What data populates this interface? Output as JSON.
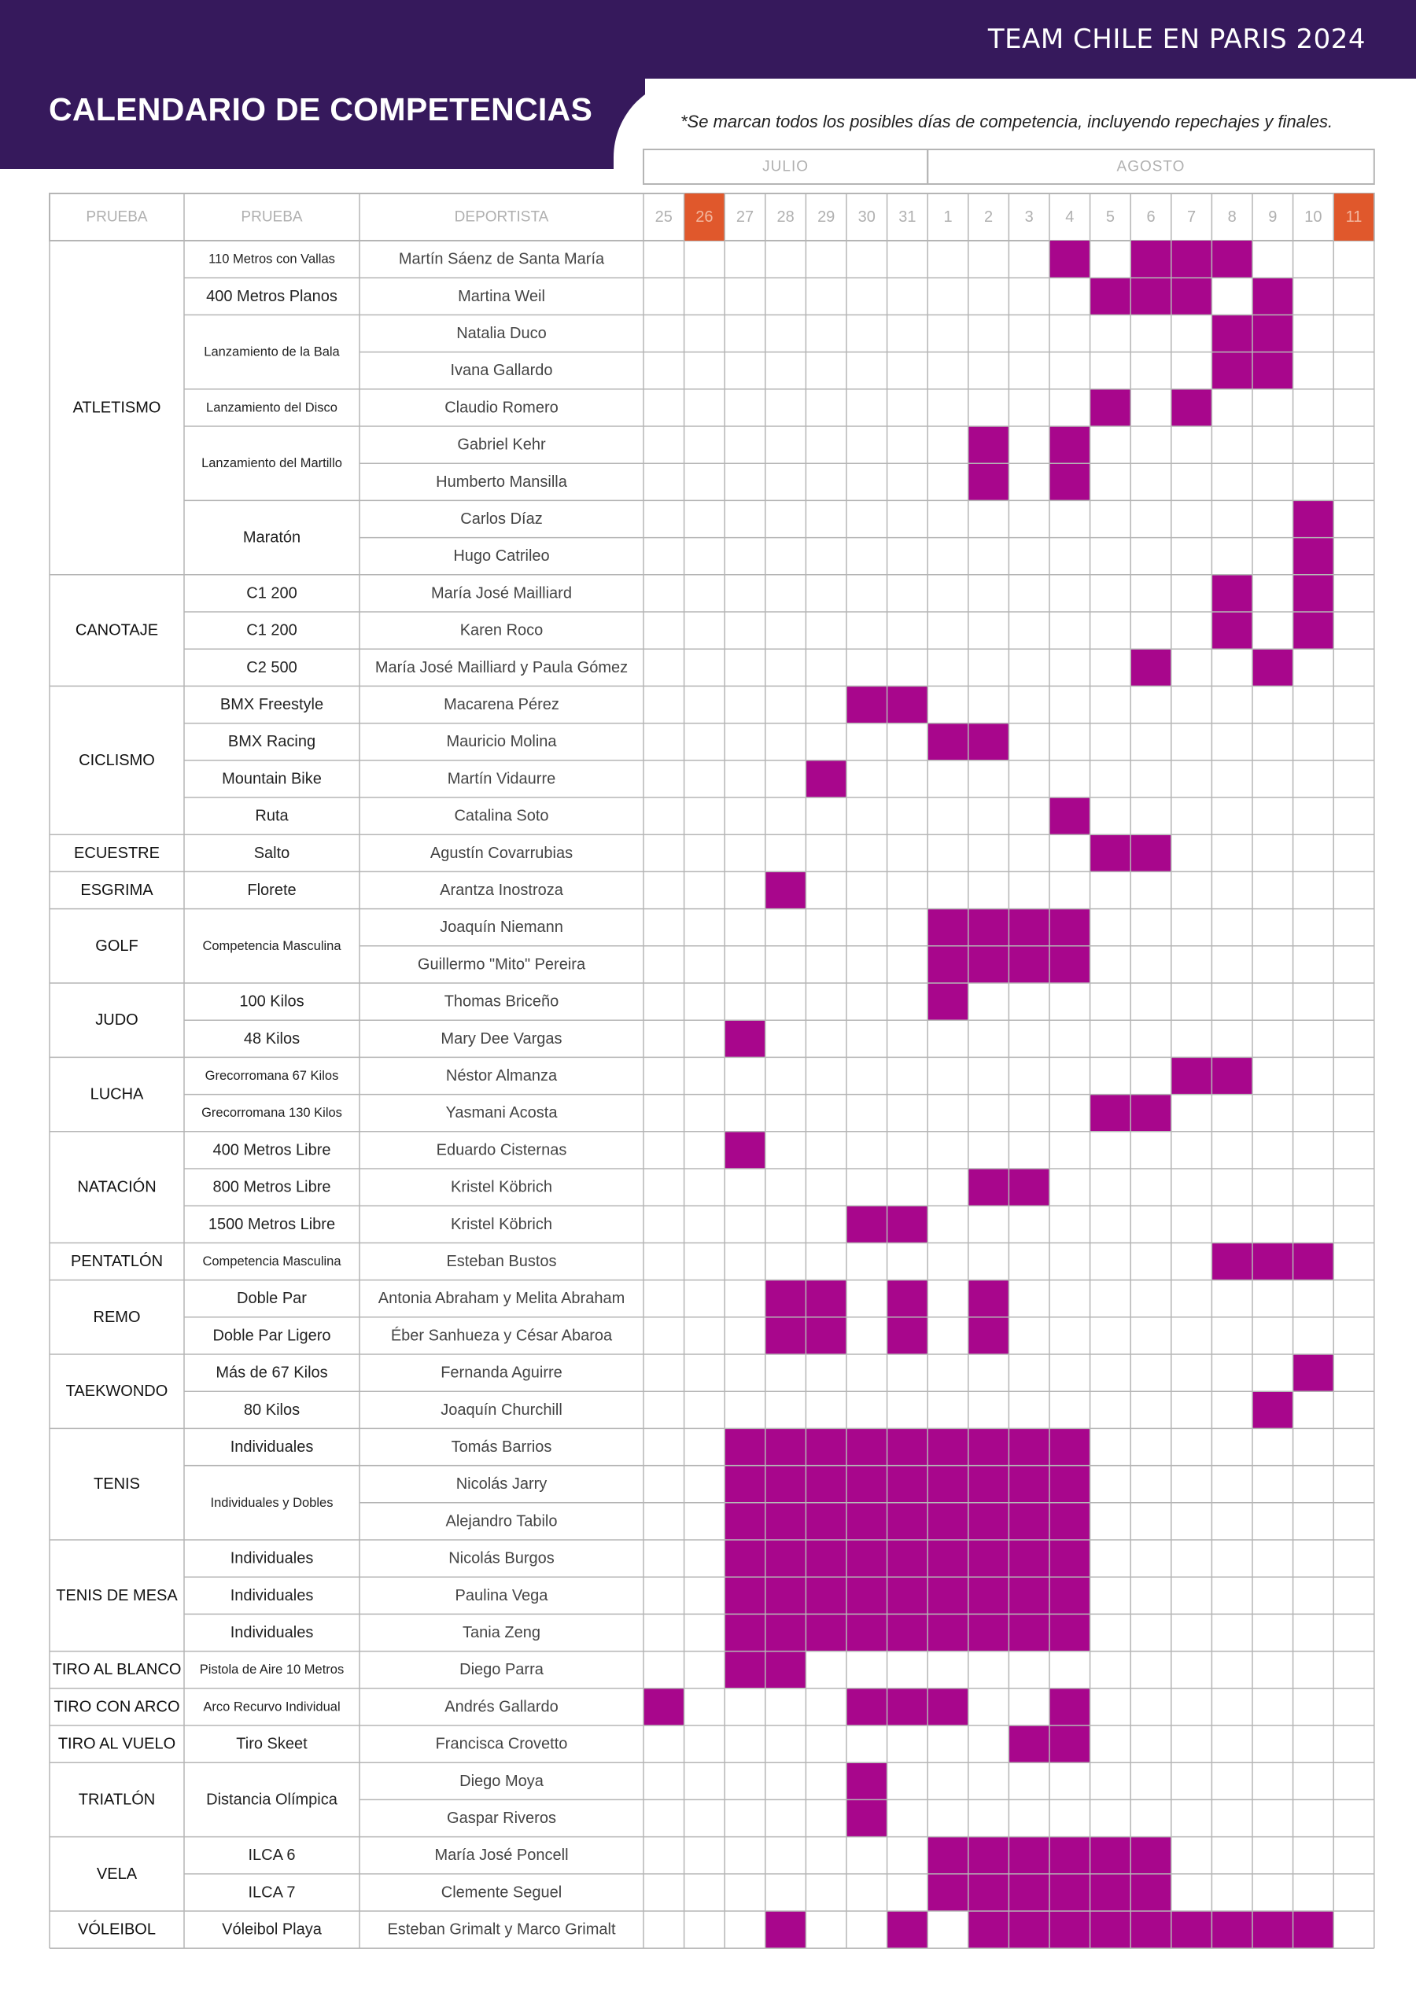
{
  "header": {
    "team_title": "TEAM CHILE EN PARIS 2024",
    "page_title": "CALENDARIO DE COMPETENCIAS",
    "note": "*Se marcan todos los posibles días de competencia, incluyendo repechajes y finales."
  },
  "colors": {
    "band": "#36195c",
    "mark": "#a8068c",
    "weekend": "#e0582c",
    "grid": "#b5b5b5",
    "muted": "#b0b0b0"
  },
  "months": [
    {
      "label": "JULIO",
      "span": 7
    },
    {
      "label": "AGOSTO",
      "span": 11
    }
  ],
  "columns": {
    "prueba": "PRUEBA",
    "evento": "PRUEBA",
    "deportista": "DEPORTISTA"
  },
  "days": [
    "25",
    "26",
    "27",
    "28",
    "29",
    "30",
    "31",
    "1",
    "2",
    "3",
    "4",
    "5",
    "6",
    "7",
    "8",
    "9",
    "10",
    "11"
  ],
  "highlight_days": [
    1,
    17
  ],
  "sports": [
    {
      "name": "ATLETISMO",
      "events": [
        {
          "name": "110 Metros con Vallas",
          "athletes": [
            {
              "name": "Martín Sáenz de Santa María",
              "days": [
                10,
                12,
                13,
                14
              ]
            }
          ]
        },
        {
          "name": "400 Metros Planos",
          "athletes": [
            {
              "name": "Martina Weil",
              "days": [
                11,
                12,
                13,
                15
              ]
            }
          ]
        },
        {
          "name": "Lanzamiento de la Bala",
          "athletes": [
            {
              "name": "Natalia Duco",
              "days": [
                14,
                15
              ]
            },
            {
              "name": "Ivana Gallardo",
              "days": [
                14,
                15
              ]
            }
          ]
        },
        {
          "name": "Lanzamiento del Disco",
          "athletes": [
            {
              "name": "Claudio Romero",
              "days": [
                11,
                13
              ]
            }
          ]
        },
        {
          "name": "Lanzamiento del Martillo",
          "athletes": [
            {
              "name": "Gabriel Kehr",
              "days": [
                8,
                10
              ]
            },
            {
              "name": "Humberto Mansilla",
              "days": [
                8,
                10
              ]
            }
          ]
        },
        {
          "name": "Maratón",
          "athletes": [
            {
              "name": "Carlos Díaz",
              "days": [
                16
              ]
            },
            {
              "name": "Hugo Catrileo",
              "days": [
                16
              ]
            }
          ]
        }
      ]
    },
    {
      "name": "CANOTAJE",
      "events": [
        {
          "name": "C1 200",
          "athletes": [
            {
              "name": "María José Mailliard",
              "days": [
                14,
                16
              ]
            }
          ]
        },
        {
          "name": "C1 200",
          "athletes": [
            {
              "name": "Karen Roco",
              "days": [
                14,
                16
              ]
            }
          ]
        },
        {
          "name": "C2 500",
          "athletes": [
            {
              "name": "María José Mailliard y Paula Gómez",
              "days": [
                12,
                15
              ]
            }
          ]
        }
      ]
    },
    {
      "name": "CICLISMO",
      "events": [
        {
          "name": "BMX Freestyle",
          "athletes": [
            {
              "name": "Macarena Pérez",
              "days": [
                5,
                6
              ]
            }
          ]
        },
        {
          "name": "BMX Racing",
          "athletes": [
            {
              "name": "Mauricio Molina",
              "days": [
                7,
                8
              ]
            }
          ]
        },
        {
          "name": "Mountain Bike",
          "athletes": [
            {
              "name": "Martín Vidaurre",
              "days": [
                4
              ]
            }
          ]
        },
        {
          "name": "Ruta",
          "athletes": [
            {
              "name": "Catalina Soto",
              "days": [
                10
              ]
            }
          ]
        }
      ]
    },
    {
      "name": "ECUESTRE",
      "events": [
        {
          "name": "Salto",
          "athletes": [
            {
              "name": "Agustín Covarrubias",
              "days": [
                11,
                12
              ]
            }
          ]
        }
      ]
    },
    {
      "name": "ESGRIMA",
      "events": [
        {
          "name": "Florete",
          "athletes": [
            {
              "name": "Arantza Inostroza",
              "days": [
                3
              ]
            }
          ]
        }
      ]
    },
    {
      "name": "GOLF",
      "events": [
        {
          "name": "Competencia Masculina",
          "athletes": [
            {
              "name": "Joaquín Niemann",
              "days": [
                7,
                8,
                9,
                10
              ]
            },
            {
              "name": "Guillermo \"Mito\" Pereira",
              "days": [
                7,
                8,
                9,
                10
              ]
            }
          ]
        }
      ]
    },
    {
      "name": "JUDO",
      "events": [
        {
          "name": "100 Kilos",
          "athletes": [
            {
              "name": "Thomas Briceño",
              "days": [
                7
              ]
            }
          ]
        },
        {
          "name": "48 Kilos",
          "athletes": [
            {
              "name": "Mary Dee Vargas",
              "days": [
                2
              ]
            }
          ]
        }
      ]
    },
    {
      "name": "LUCHA",
      "events": [
        {
          "name": "Grecorromana 67 Kilos",
          "athletes": [
            {
              "name": "Néstor Almanza",
              "days": [
                13,
                14
              ]
            }
          ]
        },
        {
          "name": "Grecorromana 130 Kilos",
          "athletes": [
            {
              "name": "Yasmani Acosta",
              "days": [
                11,
                12
              ]
            }
          ]
        }
      ]
    },
    {
      "name": "NATACIÓN",
      "events": [
        {
          "name": "400 Metros Libre",
          "athletes": [
            {
              "name": "Eduardo Cisternas",
              "days": [
                2
              ]
            }
          ]
        },
        {
          "name": "800 Metros Libre",
          "athletes": [
            {
              "name": "Kristel Köbrich",
              "days": [
                8,
                9
              ]
            }
          ]
        },
        {
          "name": "1500 Metros Libre",
          "athletes": [
            {
              "name": "Kristel Köbrich",
              "days": [
                5,
                6
              ]
            }
          ]
        }
      ]
    },
    {
      "name": "PENTATLÓN",
      "events": [
        {
          "name": "Competencia Masculina",
          "athletes": [
            {
              "name": "Esteban Bustos",
              "days": [
                14,
                15,
                16
              ]
            }
          ]
        }
      ]
    },
    {
      "name": "REMO",
      "events": [
        {
          "name": "Doble Par",
          "athletes": [
            {
              "name": "Antonia Abraham y Melita Abraham",
              "days": [
                3,
                4,
                6,
                8
              ]
            }
          ]
        },
        {
          "name": "Doble Par Ligero",
          "athletes": [
            {
              "name": "Éber Sanhueza y César Abaroa",
              "days": [
                3,
                4,
                6,
                8
              ]
            }
          ]
        }
      ]
    },
    {
      "name": "TAEKWONDO",
      "events": [
        {
          "name": "Más de 67 Kilos",
          "athletes": [
            {
              "name": "Fernanda Aguirre",
              "days": [
                16
              ]
            }
          ]
        },
        {
          "name": "80 Kilos",
          "athletes": [
            {
              "name": "Joaquín Churchill",
              "days": [
                15
              ]
            }
          ]
        }
      ]
    },
    {
      "name": "TENIS",
      "events": [
        {
          "name": "Individuales",
          "athletes": [
            {
              "name": "Tomás Barrios",
              "days": [
                2,
                3,
                4,
                5,
                6,
                7,
                8,
                9,
                10
              ]
            }
          ]
        },
        {
          "name": "Individuales y Dobles",
          "athletes": [
            {
              "name": "Nicolás Jarry",
              "days": [
                2,
                3,
                4,
                5,
                6,
                7,
                8,
                9,
                10
              ]
            },
            {
              "name": "Alejandro Tabilo",
              "days": [
                2,
                3,
                4,
                5,
                6,
                7,
                8,
                9,
                10
              ]
            }
          ]
        }
      ]
    },
    {
      "name": "TENIS DE MESA",
      "events": [
        {
          "name": "Individuales",
          "athletes": [
            {
              "name": "Nicolás Burgos",
              "days": [
                2,
                3,
                4,
                5,
                6,
                7,
                8,
                9,
                10
              ]
            }
          ]
        },
        {
          "name": "Individuales",
          "athletes": [
            {
              "name": "Paulina Vega",
              "days": [
                2,
                3,
                4,
                5,
                6,
                7,
                8,
                9,
                10
              ]
            }
          ]
        },
        {
          "name": "Individuales",
          "athletes": [
            {
              "name": "Tania Zeng",
              "days": [
                2,
                3,
                4,
                5,
                6,
                7,
                8,
                9,
                10
              ]
            }
          ]
        }
      ]
    },
    {
      "name": "TIRO AL BLANCO",
      "events": [
        {
          "name": "Pistola de Aire 10 Metros",
          "athletes": [
            {
              "name": "Diego Parra",
              "days": [
                2,
                3
              ]
            }
          ]
        }
      ]
    },
    {
      "name": "TIRO CON ARCO",
      "events": [
        {
          "name": "Arco Recurvo Individual",
          "athletes": [
            {
              "name": "Andrés Gallardo",
              "days": [
                0,
                5,
                6,
                7,
                10
              ]
            }
          ]
        }
      ]
    },
    {
      "name": "TIRO AL VUELO",
      "events": [
        {
          "name": "Tiro Skeet",
          "athletes": [
            {
              "name": "Francisca Crovetto",
              "days": [
                9,
                10
              ]
            }
          ]
        }
      ]
    },
    {
      "name": "TRIATLÓN",
      "events": [
        {
          "name": "Distancia Olímpica",
          "athletes": [
            {
              "name": "Diego Moya",
              "days": [
                5
              ]
            },
            {
              "name": "Gaspar Riveros",
              "days": [
                5
              ]
            }
          ]
        }
      ]
    },
    {
      "name": "VELA",
      "events": [
        {
          "name": "ILCA 6",
          "athletes": [
            {
              "name": "María José Poncell",
              "days": [
                7,
                8,
                9,
                10,
                11,
                12
              ]
            }
          ]
        },
        {
          "name": "ILCA 7",
          "athletes": [
            {
              "name": "Clemente Seguel",
              "days": [
                7,
                8,
                9,
                10,
                11,
                12
              ]
            }
          ]
        }
      ]
    },
    {
      "name": "VÓLEIBOL",
      "events": [
        {
          "name": "Vóleibol Playa",
          "athletes": [
            {
              "name": "Esteban Grimalt y Marco Grimalt",
              "days": [
                3,
                6,
                8,
                9,
                10,
                11,
                12,
                13,
                14,
                15,
                16
              ]
            }
          ]
        }
      ]
    }
  ]
}
